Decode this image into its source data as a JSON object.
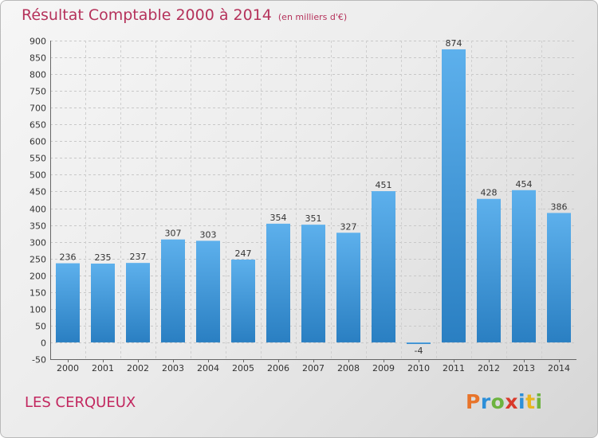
{
  "chart_data": {
    "type": "bar",
    "title": "Résultat Comptable 2000 à 2014",
    "subtitle": "(en milliers d'€)",
    "categories": [
      "2000",
      "2001",
      "2002",
      "2003",
      "2004",
      "2005",
      "2006",
      "2007",
      "2008",
      "2009",
      "2010",
      "2011",
      "2012",
      "2013",
      "2014"
    ],
    "values": [
      236,
      235,
      237,
      307,
      303,
      247,
      354,
      351,
      327,
      451,
      -4,
      874,
      428,
      454,
      386
    ],
    "ylim": [
      -50,
      900
    ],
    "yticks": [
      -50,
      0,
      50,
      100,
      150,
      200,
      250,
      300,
      350,
      400,
      450,
      500,
      550,
      600,
      650,
      700,
      750,
      800,
      850,
      900
    ],
    "grid": true,
    "bar_color": "#3d9be0"
  },
  "footer": {
    "commune": "LES CERQUEUX",
    "logo": [
      "P",
      "r",
      "o",
      "x",
      "i",
      "t",
      "i"
    ]
  }
}
